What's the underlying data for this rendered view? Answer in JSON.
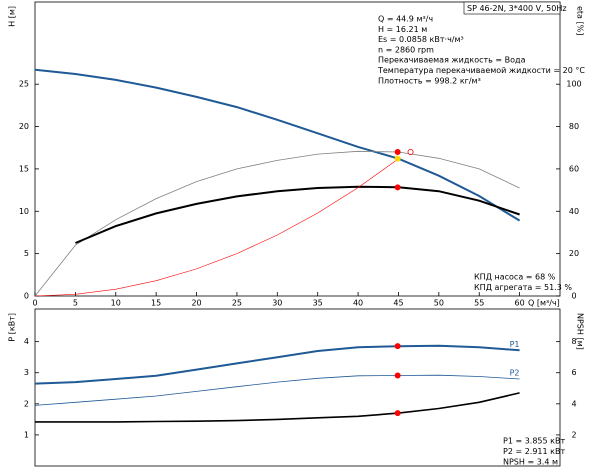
{
  "chart_data": [
    {
      "type": "line",
      "title": "SP 46-2N, 3*400 V, 50Hz",
      "ylabel": "H [м]",
      "y2label": "eta [%]",
      "xlabel": "Q [м³/ч]",
      "x": [
        0,
        5,
        10,
        15,
        20,
        25,
        30,
        35,
        40,
        45,
        50,
        55,
        60
      ],
      "xlim": [
        0,
        65
      ],
      "xticks": [
        0,
        5,
        10,
        15,
        20,
        25,
        30,
        35,
        40,
        45,
        50,
        55,
        60
      ],
      "ylim": [
        0,
        34.7
      ],
      "yticks": [
        0,
        5,
        10,
        15,
        20,
        25
      ],
      "y2lim": [
        0,
        138.8
      ],
      "y2ticks": [
        0,
        20,
        40,
        60,
        80,
        100
      ],
      "series": [
        {
          "color": "#1f5a96",
          "line_width": 2,
          "values": [
            26.7,
            26.2,
            25.5,
            24.6,
            23.5,
            22.3,
            20.8,
            19.2,
            17.6,
            16.21,
            14.2,
            11.8,
            8.9
          ]
        },
        {
          "color": "#808080",
          "line_width": 0.8,
          "axis": "y2",
          "values": [
            0,
            24,
            36,
            46,
            54,
            60,
            64,
            67,
            68.3,
            68,
            65,
            60,
            51
          ]
        },
        {
          "color": "#000000",
          "line_width": 2,
          "axis": "y2",
          "values": [
            null,
            25,
            33,
            39,
            43.5,
            47,
            49.5,
            51,
            51.6,
            51.3,
            49.5,
            45,
            38.5
          ]
        },
        {
          "color": "#ff0000",
          "line_width": 0.6,
          "values": [
            0,
            0.2,
            0.8,
            1.8,
            3.2,
            5.0,
            7.2,
            9.8,
            12.8,
            16.21,
            null,
            null,
            null
          ]
        }
      ],
      "markers": [
        {
          "x": 44.9,
          "value": 16.21,
          "color": "#ffd700"
        },
        {
          "x": 44.9,
          "value": 68,
          "axis": "y2",
          "color": "#ff0000"
        },
        {
          "x": 44.9,
          "value": 51.3,
          "axis": "y2",
          "color": "#ff0000"
        },
        {
          "x": 46.5,
          "value": 68,
          "axis": "y2",
          "color": "#ff0000",
          "hollow": true
        }
      ],
      "annotations": [
        "Q = 44.9 м³/ч",
        "H = 16.21 м",
        "Es = 0.0858 кВт·ч/м³",
        "n = 2860 rpm",
        "Перекачиваемая жидкость = Вода",
        "Температура перекачиваемой жидкости = 20 °C",
        "Плотность = 998.2 кг/м³"
      ],
      "notes": [
        "КПД насоса = 68 %",
        "КПД агрегата = 51.3 %"
      ]
    },
    {
      "type": "line",
      "ylabel": "P [кВт]",
      "y2label": "NPSH [м]",
      "x": [
        0,
        5,
        10,
        15,
        20,
        25,
        30,
        35,
        40,
        45,
        50,
        55,
        60
      ],
      "xlim": [
        0,
        65
      ],
      "ylim": [
        0,
        5.05
      ],
      "yticks": [
        1,
        2,
        3,
        4
      ],
      "y2lim": [
        0,
        10.1
      ],
      "y2ticks": [
        2,
        4,
        6,
        8
      ],
      "series": [
        {
          "name": "P1",
          "color": "#1f5a96",
          "line_width": 2,
          "values": [
            2.65,
            2.7,
            2.8,
            2.9,
            3.1,
            3.3,
            3.5,
            3.7,
            3.82,
            3.855,
            3.87,
            3.82,
            3.72
          ]
        },
        {
          "name": "P2",
          "color": "#1f5a96",
          "line_width": 0.8,
          "values": [
            1.95,
            2.05,
            2.15,
            2.25,
            2.4,
            2.55,
            2.7,
            2.82,
            2.9,
            2.911,
            2.92,
            2.88,
            2.8
          ]
        },
        {
          "color": "#000000",
          "line_width": 1.6,
          "axis": "y2",
          "values": [
            2.84,
            2.84,
            2.84,
            2.86,
            2.88,
            2.92,
            3.0,
            3.1,
            3.2,
            3.4,
            3.7,
            4.1,
            4.7
          ]
        }
      ],
      "markers": [
        {
          "x": 44.9,
          "value": 3.855,
          "color": "#ff0000"
        },
        {
          "x": 44.9,
          "value": 2.911,
          "color": "#ff0000"
        },
        {
          "x": 44.9,
          "value": 3.4,
          "axis": "y2",
          "color": "#ff0000"
        }
      ],
      "notes": [
        "P1 = 3.855 кВт",
        "P2 = 2.911 кВт",
        "NPSH = 3.4 м"
      ]
    }
  ]
}
